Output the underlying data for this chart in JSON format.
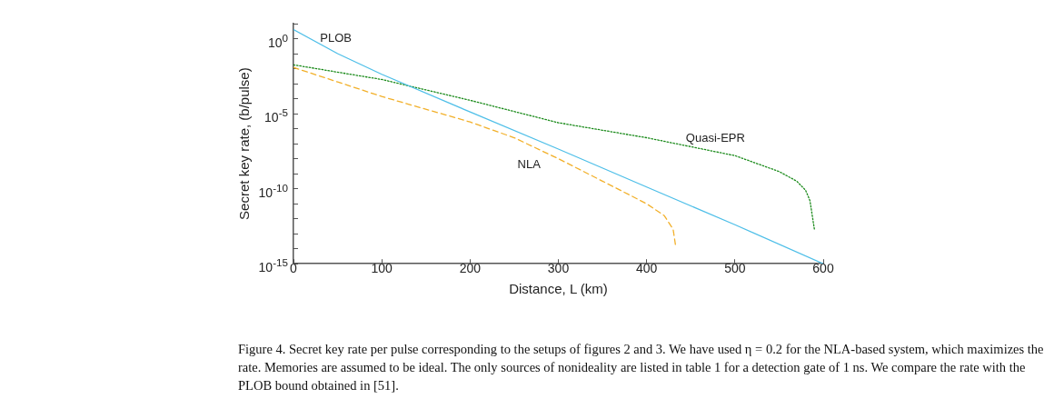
{
  "chart_data": {
    "type": "line",
    "xlabel": "Distance, L (km)",
    "ylabel": "Secret key rate, (b/pulse)",
    "log": "y",
    "grid": false,
    "legend": false,
    "marker": "none",
    "xlim": [
      0,
      600
    ],
    "xticks": [
      0,
      100,
      200,
      300,
      400,
      500,
      600
    ],
    "ylim": [
      1e-15,
      10
    ],
    "yticks": [
      {
        "value": 1,
        "label": "10$^{0}$"
      },
      {
        "value": 1e-05,
        "label": "10$^{-5}$"
      },
      {
        "value": 1e-10,
        "label": "10$^{-10}$"
      },
      {
        "value": 1e-15,
        "label": "10$^{-15}$"
      }
    ],
    "series": [
      {
        "name": "PLOB",
        "color": "#4fbfe8",
        "line_style": "solid",
        "x": [
          0,
          50,
          100,
          200,
          300,
          400,
          500,
          600
        ],
        "values": [
          4,
          0.1,
          0.0042,
          1.3e-05,
          4.4e-08,
          1.3e-10,
          4e-13,
          1e-15
        ]
      },
      {
        "name": "Quasi-EPR",
        "color": "#1a8a1a",
        "line_style": "dotted",
        "x": [
          0,
          100,
          200,
          300,
          400,
          500,
          550,
          570,
          580,
          585,
          590
        ],
        "values": [
          0.018,
          0.0019,
          7.8e-05,
          2.5e-06,
          2.5e-07,
          1.6e-08,
          1.4e-09,
          3.2e-10,
          8e-11,
          1.6e-11,
          2e-13
        ]
      },
      {
        "name": "NLA",
        "color": "#f2b02a",
        "line_style": "dashed",
        "x": [
          0,
          50,
          100,
          200,
          250,
          300,
          350,
          400,
          420,
          430,
          433
        ],
        "values": [
          0.012,
          0.0013,
          0.00014,
          2.8e-06,
          2.5e-07,
          1e-08,
          3.2e-10,
          1e-11,
          1.6e-12,
          2e-13,
          1.3e-14
        ]
      }
    ],
    "annotations": [
      "Figure 4. Secret key rate per pulse corresponding to the setups of figures 2 and 3. We have used η = 0.2 for the NLA-based system, which maximizes the rate. Memories are assumed to be ideal. The only sources of nonideality are listed in table 1 for a detection gate of 1 ns. We compare the rate with the PLOB bound obtained in [51]."
    ]
  }
}
